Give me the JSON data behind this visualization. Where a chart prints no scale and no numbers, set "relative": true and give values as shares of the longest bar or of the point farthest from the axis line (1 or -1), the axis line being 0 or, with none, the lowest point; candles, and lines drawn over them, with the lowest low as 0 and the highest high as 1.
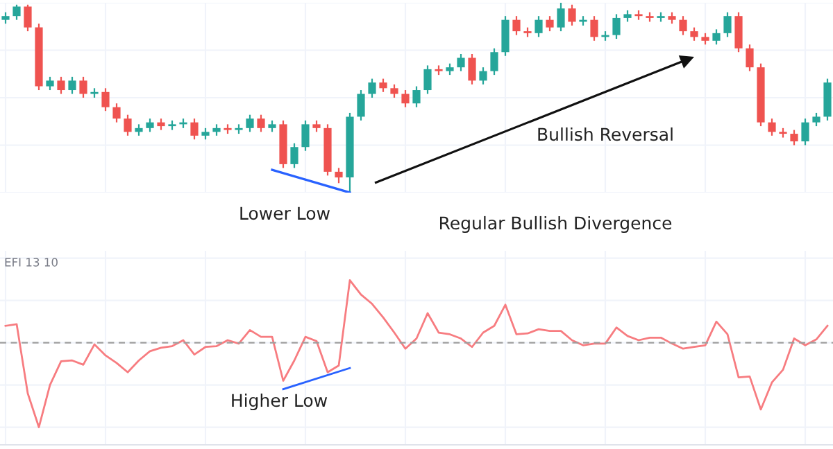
{
  "chart_data": [
    {
      "type": "candlestick",
      "relative": true,
      "grid": true,
      "categories": [
        null,
        null,
        null,
        null,
        null,
        null,
        null,
        null,
        null,
        null,
        null,
        null,
        null,
        null,
        null,
        null,
        null,
        null,
        null,
        null,
        null,
        null,
        null,
        null,
        null,
        null,
        null,
        null,
        null,
        null,
        null,
        null,
        null,
        null,
        null,
        null,
        null,
        null,
        null,
        null,
        null,
        null,
        null,
        null,
        null,
        null,
        null,
        null,
        null,
        null,
        null,
        null,
        null,
        null,
        null,
        null,
        null,
        null,
        null,
        null,
        null,
        null,
        null,
        null,
        null,
        null,
        null,
        null,
        null,
        null,
        null,
        null,
        null,
        null,
        null
      ],
      "ohlc": [
        [
          0.91,
          0.95,
          0.89,
          0.93
        ],
        [
          0.93,
          0.99,
          0.91,
          0.98
        ],
        [
          0.98,
          0.99,
          0.85,
          0.87
        ],
        [
          0.87,
          0.89,
          0.54,
          0.56
        ],
        [
          0.56,
          0.61,
          0.54,
          0.59
        ],
        [
          0.59,
          0.61,
          0.52,
          0.54
        ],
        [
          0.54,
          0.61,
          0.52,
          0.59
        ],
        [
          0.59,
          0.61,
          0.5,
          0.52
        ],
        [
          0.52,
          0.55,
          0.5,
          0.53
        ],
        [
          0.53,
          0.55,
          0.43,
          0.45
        ],
        [
          0.45,
          0.47,
          0.37,
          0.39
        ],
        [
          0.39,
          0.41,
          0.3,
          0.32
        ],
        [
          0.32,
          0.36,
          0.3,
          0.34
        ],
        [
          0.34,
          0.39,
          0.32,
          0.37
        ],
        [
          0.37,
          0.39,
          0.33,
          0.35
        ],
        [
          0.35,
          0.38,
          0.33,
          0.36
        ],
        [
          0.36,
          0.39,
          0.34,
          0.37
        ],
        [
          0.37,
          0.39,
          0.28,
          0.3
        ],
        [
          0.3,
          0.34,
          0.28,
          0.32
        ],
        [
          0.32,
          0.36,
          0.3,
          0.34
        ],
        [
          0.34,
          0.36,
          0.31,
          0.33
        ],
        [
          0.33,
          0.36,
          0.31,
          0.34
        ],
        [
          0.34,
          0.41,
          0.32,
          0.39
        ],
        [
          0.39,
          0.41,
          0.32,
          0.34
        ],
        [
          0.34,
          0.38,
          0.32,
          0.36
        ],
        [
          0.36,
          0.38,
          0.13,
          0.15
        ],
        [
          0.15,
          0.26,
          0.13,
          0.24
        ],
        [
          0.24,
          0.38,
          0.22,
          0.36
        ],
        [
          0.36,
          0.38,
          0.32,
          0.34
        ],
        [
          0.34,
          0.36,
          0.09,
          0.11
        ],
        [
          0.11,
          0.13,
          0.05,
          0.08
        ],
        [
          0.08,
          0.42,
          0.0,
          0.4
        ],
        [
          0.4,
          0.54,
          0.38,
          0.52
        ],
        [
          0.52,
          0.6,
          0.5,
          0.58
        ],
        [
          0.58,
          0.6,
          0.53,
          0.55
        ],
        [
          0.55,
          0.57,
          0.5,
          0.52
        ],
        [
          0.52,
          0.54,
          0.45,
          0.47
        ],
        [
          0.47,
          0.56,
          0.45,
          0.54
        ],
        [
          0.54,
          0.67,
          0.52,
          0.65
        ],
        [
          0.65,
          0.67,
          0.62,
          0.64
        ],
        [
          0.64,
          0.68,
          0.62,
          0.66
        ],
        [
          0.66,
          0.73,
          0.64,
          0.71
        ],
        [
          0.71,
          0.73,
          0.57,
          0.59
        ],
        [
          0.59,
          0.66,
          0.57,
          0.64
        ],
        [
          0.64,
          0.76,
          0.62,
          0.74
        ],
        [
          0.74,
          0.93,
          0.72,
          0.91
        ],
        [
          0.91,
          0.93,
          0.83,
          0.85
        ],
        [
          0.85,
          0.87,
          0.82,
          0.84
        ],
        [
          0.84,
          0.93,
          0.82,
          0.91
        ],
        [
          0.91,
          0.93,
          0.85,
          0.87
        ],
        [
          0.87,
          1.0,
          0.85,
          0.97
        ],
        [
          0.97,
          0.99,
          0.88,
          0.9
        ],
        [
          0.9,
          0.93,
          0.88,
          0.91
        ],
        [
          0.91,
          0.93,
          0.8,
          0.82
        ],
        [
          0.82,
          0.85,
          0.8,
          0.83
        ],
        [
          0.83,
          0.94,
          0.81,
          0.92
        ],
        [
          0.92,
          0.96,
          0.9,
          0.94
        ],
        [
          0.94,
          0.96,
          0.91,
          0.93
        ],
        [
          0.93,
          0.95,
          0.9,
          0.92
        ],
        [
          0.92,
          0.95,
          0.9,
          0.93
        ],
        [
          0.93,
          0.95,
          0.89,
          0.91
        ],
        [
          0.91,
          0.93,
          0.83,
          0.85
        ],
        [
          0.85,
          0.87,
          0.8,
          0.82
        ],
        [
          0.82,
          0.84,
          0.78,
          0.8
        ],
        [
          0.8,
          0.86,
          0.78,
          0.84
        ],
        [
          0.84,
          0.95,
          0.82,
          0.93
        ],
        [
          0.93,
          0.95,
          0.74,
          0.76
        ],
        [
          0.76,
          0.78,
          0.64,
          0.66
        ],
        [
          0.66,
          0.68,
          0.35,
          0.37
        ],
        [
          0.37,
          0.39,
          0.3,
          0.32
        ],
        [
          0.32,
          0.34,
          0.29,
          0.31
        ],
        [
          0.31,
          0.33,
          0.25,
          0.27
        ],
        [
          0.27,
          0.39,
          0.25,
          0.37
        ],
        [
          0.37,
          0.42,
          0.35,
          0.4
        ],
        [
          0.4,
          0.6,
          0.38,
          0.58
        ]
      ],
      "colors": [
        "#26a69a",
        "#26a69a",
        "#ef5350",
        "#ef5350",
        "#26a69a",
        "#ef5350",
        "#26a69a",
        "#ef5350",
        "#26a69a",
        "#ef5350",
        "#ef5350",
        "#ef5350",
        "#26a69a",
        "#26a69a",
        "#ef5350",
        "#26a69a",
        "#26a69a",
        "#ef5350",
        "#26a69a",
        "#26a69a",
        "#ef5350",
        "#26a69a",
        "#26a69a",
        "#ef5350",
        "#26a69a",
        "#ef5350",
        "#26a69a",
        "#26a69a",
        "#ef5350",
        "#ef5350",
        "#ef5350",
        "#26a69a",
        "#26a69a",
        "#26a69a",
        "#ef5350",
        "#ef5350",
        "#ef5350",
        "#26a69a",
        "#26a69a",
        "#ef5350",
        "#26a69a",
        "#26a69a",
        "#ef5350",
        "#26a69a",
        "#26a69a",
        "#26a69a",
        "#ef5350",
        "#ef5350",
        "#26a69a",
        "#ef5350",
        "#26a69a",
        "#ef5350",
        "#26a69a",
        "#ef5350",
        "#26a69a",
        "#26a69a",
        "#26a69a",
        "#ef5350",
        "#ef5350",
        "#26a69a",
        "#ef5350",
        "#ef5350",
        "#ef5350",
        "#ef5350",
        "#26a69a",
        "#26a69a",
        "#ef5350",
        "#ef5350",
        "#ef5350",
        "#ef5350",
        "#ef5350",
        "#ef5350",
        "#26a69a",
        "#26a69a",
        "#26a69a"
      ],
      "series": [
        {
          "type": "line",
          "color": "#2962ff",
          "values": [
            null,
            null,
            null,
            null,
            null,
            null,
            null,
            null,
            null,
            null,
            null,
            null,
            null,
            null,
            null,
            null,
            null,
            null,
            null,
            null,
            null,
            null,
            null,
            null,
            0.12,
            null,
            null,
            null,
            null,
            null,
            null,
            0.0,
            null,
            null,
            null,
            null,
            null,
            null,
            null,
            null,
            null,
            null,
            null,
            null,
            null,
            null,
            null,
            null,
            null,
            null,
            null,
            null,
            null,
            null,
            null,
            null,
            null,
            null,
            null,
            null,
            null,
            null,
            null,
            null,
            null,
            null,
            null,
            null,
            null,
            null,
            null,
            null,
            null,
            null,
            null
          ]
        }
      ],
      "annotations": [
        "Lower Low",
        "Bullish Reversal",
        "Regular Bullish Divergence"
      ]
    },
    {
      "type": "line",
      "relative": true,
      "grid": true,
      "title": "EFI 13 10",
      "categories": [
        null,
        null,
        null,
        null,
        null,
        null,
        null,
        null,
        null,
        null,
        null,
        null,
        null,
        null,
        null,
        null,
        null,
        null,
        null,
        null,
        null,
        null,
        null,
        null,
        null,
        null,
        null,
        null,
        null,
        null,
        null,
        null,
        null,
        null,
        null,
        null,
        null,
        null,
        null,
        null,
        null,
        null,
        null,
        null,
        null,
        null,
        null,
        null,
        null,
        null,
        null,
        null,
        null,
        null,
        null,
        null,
        null,
        null,
        null,
        null,
        null,
        null,
        null,
        null,
        null,
        null,
        null,
        null,
        null,
        null,
        null,
        null,
        null,
        null,
        null
      ],
      "series": [
        {
          "color": "#f77c80",
          "values": [
            0.2,
            0.22,
            -0.6,
            -1,
            -0.5,
            -0.22,
            -0.21,
            -0.26,
            -0.02,
            -0.15,
            -0.24,
            -0.35,
            -0.21,
            -0.1,
            -0.06,
            -0.04,
            0.03,
            -0.14,
            -0.05,
            -0.04,
            0.03,
            -0.01,
            0.15,
            0.07,
            0.07,
            -0.45,
            -0.21,
            0.07,
            0.02,
            -0.35,
            -0.27,
            0.74,
            0.57,
            0.46,
            0.3,
            0.12,
            -0.07,
            0.05,
            0.35,
            0.12,
            0.1,
            0.05,
            -0.05,
            0.12,
            0.2,
            0.45,
            0.1,
            0.11,
            0.16,
            0.14,
            0.14,
            0.03,
            -0.03,
            -0.01,
            -0.01,
            0.18,
            0.08,
            0.03,
            0.06,
            0.06,
            -0.01,
            -0.07,
            -0.05,
            -0.03,
            0.25,
            0.1,
            -0.41,
            -0.4,
            -0.79,
            -0.47,
            -0.32,
            0.05,
            -0.03,
            0.04,
            0.2
          ]
        },
        {
          "color": "#2962ff",
          "values": [
            null,
            null,
            null,
            null,
            null,
            null,
            null,
            null,
            null,
            null,
            null,
            null,
            null,
            null,
            null,
            null,
            null,
            null,
            null,
            null,
            null,
            null,
            null,
            null,
            null,
            -0.55,
            null,
            null,
            null,
            null,
            null,
            -0.3,
            null,
            null,
            null,
            null,
            null,
            null,
            null,
            null,
            null,
            null,
            null,
            null,
            null,
            null,
            null,
            null,
            null,
            null,
            null,
            null,
            null,
            null,
            null,
            null,
            null,
            null,
            null,
            null,
            null,
            null,
            null,
            null,
            null,
            null,
            null,
            null,
            null,
            null,
            null,
            null,
            null,
            null,
            null
          ]
        }
      ],
      "ref_lines": [
        {
          "axis": "y",
          "value": 0,
          "color": "#9e9e9e",
          "line_style": "dashed"
        }
      ],
      "annotations": [
        "Higher Low"
      ]
    }
  ]
}
